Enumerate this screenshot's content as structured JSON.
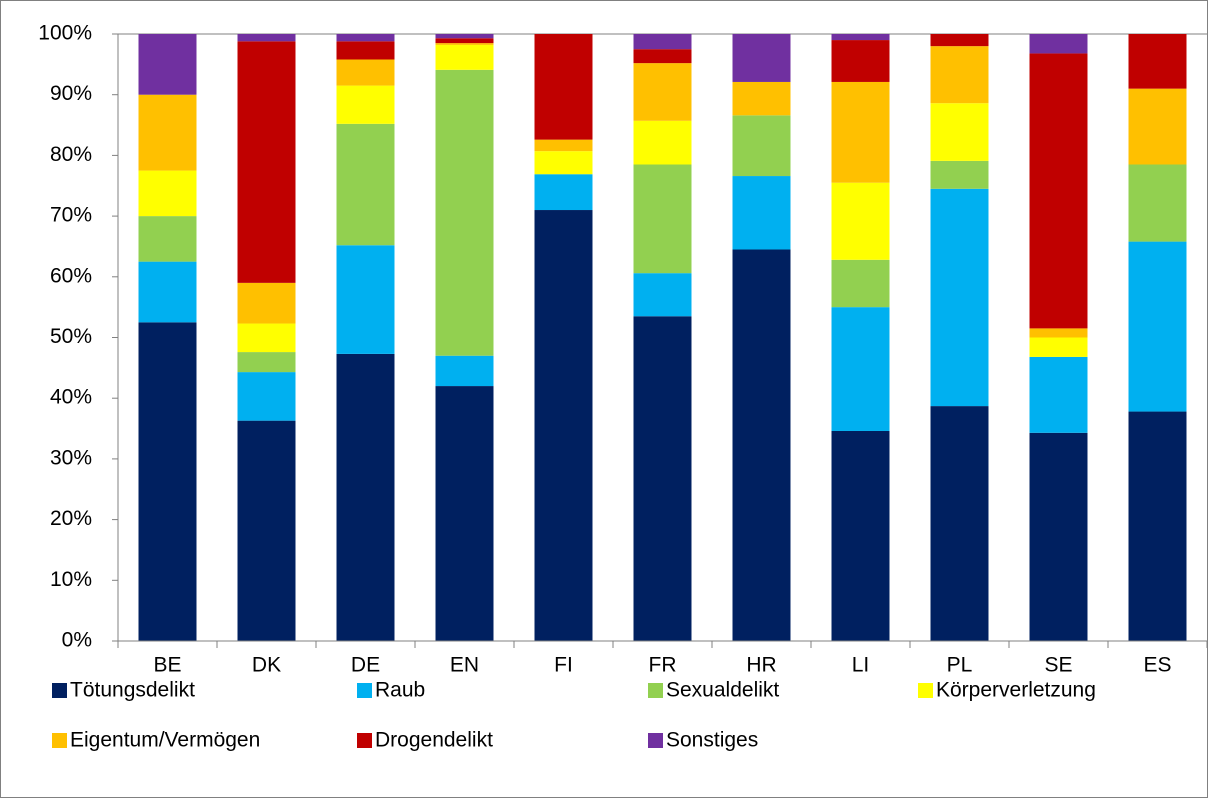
{
  "chart_data": {
    "type": "stacked_bar",
    "categories": [
      "BE",
      "DK",
      "DE",
      "EN",
      "FI",
      "FR",
      "HR",
      "LI",
      "PL",
      "SE",
      "ES"
    ],
    "series": [
      {
        "name": "Tötungsdelikt",
        "color": "#002060",
        "values": [
          52.5,
          36.3,
          47.3,
          42,
          71,
          53.5,
          64.5,
          34.6,
          38.7,
          34.3,
          37.8
        ]
      },
      {
        "name": "Raub",
        "color": "#00b0f0",
        "values": [
          10,
          8,
          17.9,
          5,
          5.9,
          7.1,
          12.1,
          20.4,
          35.8,
          12.5,
          28
        ]
      },
      {
        "name": "Sexualdelikt",
        "color": "#92d050",
        "values": [
          7.5,
          3.3,
          20,
          47.1,
          0,
          17.9,
          10,
          7.8,
          4.6,
          0,
          12.7
        ]
      },
      {
        "name": "Körperverletzung",
        "color": "#ffff00",
        "values": [
          7.5,
          4.7,
          6.3,
          4.1,
          3.8,
          7.2,
          0,
          12.7,
          9.5,
          3.2,
          0
        ]
      },
      {
        "name": "Eigentum/Vermögen",
        "color": "#ffc000",
        "values": [
          12.5,
          6.7,
          4.3,
          0.3,
          1.9,
          9.5,
          5.5,
          16.6,
          9.4,
          1.5,
          12.5
        ]
      },
      {
        "name": "Drogendelikt",
        "color": "#c00000",
        "values": [
          0,
          39.8,
          3,
          0.8,
          17.4,
          2.3,
          0,
          6.9,
          2,
          45.3,
          9
        ]
      },
      {
        "name": "Sonstiges",
        "color": "#7030a0",
        "values": [
          10,
          1.2,
          1.2,
          0.7,
          0,
          2.5,
          7.9,
          1,
          0,
          3.2,
          0
        ]
      }
    ],
    "ylim": [
      0,
      100
    ],
    "yticks": [
      {
        "value": 0,
        "label": "0%"
      },
      {
        "value": 10,
        "label": "10%"
      },
      {
        "value": 20,
        "label": "20%"
      },
      {
        "value": 30,
        "label": "30%"
      },
      {
        "value": 40,
        "label": "40%"
      },
      {
        "value": 50,
        "label": "50%"
      },
      {
        "value": 60,
        "label": "60%"
      },
      {
        "value": 70,
        "label": "70%"
      },
      {
        "value": 80,
        "label": "80%"
      },
      {
        "value": 90,
        "label": "90%"
      },
      {
        "value": 100,
        "label": "100%"
      }
    ]
  }
}
